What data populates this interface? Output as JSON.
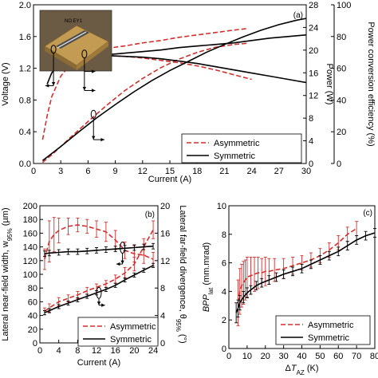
{
  "chart_data": [
    {
      "type": "line",
      "panel_label": "(a)",
      "xlabel": "Current (A)",
      "ylabel_left": "Voltage (V)",
      "ylabel_right1": "Power (W)",
      "ylabel_right2": "Power conversion efficiency (%)",
      "xlim": [
        0,
        30
      ],
      "ylim_left": [
        0,
        2.0
      ],
      "ylim_right1": [
        0,
        28
      ],
      "ylim_right2": [
        0,
        100
      ],
      "x_ticks": [
        "0",
        "3",
        "6",
        "9",
        "12",
        "15",
        "18",
        "21",
        "24",
        "27",
        "30"
      ],
      "y_left_ticks": [
        "0.0",
        "0.4",
        "0.8",
        "1.2",
        "1.6",
        "2.0"
      ],
      "y_right1_ticks": [
        "0",
        "4",
        "8",
        "12",
        "16",
        "20",
        "24",
        "28"
      ],
      "y_right2_ticks": [
        "0",
        "20",
        "40",
        "60",
        "80",
        "100"
      ],
      "legend": [
        "Asymmetric",
        "Symmetric"
      ],
      "legend_position": "bottom-right",
      "inset_image": true,
      "inset_text": "NO.EY1",
      "series": [
        {
          "name": "Asymmetric",
          "style": "dashed",
          "color": "#d32f2f",
          "quantity": "Voltage",
          "axis": "left",
          "x": [
            1,
            2,
            3,
            4,
            6,
            8,
            10,
            12,
            14,
            16,
            18,
            20,
            22,
            23.5
          ],
          "y": [
            1.33,
            1.36,
            1.38,
            1.39,
            1.42,
            1.45,
            1.48,
            1.52,
            1.55,
            1.59,
            1.62,
            1.65,
            1.68,
            1.7
          ]
        },
        {
          "name": "Asymmetric",
          "style": "dashed",
          "color": "#d32f2f",
          "quantity": "Power",
          "axis": "right1",
          "x": [
            1,
            2,
            3,
            4,
            6,
            8,
            10,
            12,
            14,
            16,
            18,
            20,
            22,
            23.5
          ],
          "y": [
            0.2,
            1.5,
            3.0,
            4.5,
            7.4,
            10.2,
            12.8,
            15.0,
            16.9,
            18.4,
            19.6,
            20.5,
            21.0,
            21.2
          ]
        },
        {
          "name": "Asymmetric",
          "style": "dashed",
          "color": "#d32f2f",
          "quantity": "Efficiency",
          "axis": "right2",
          "x": [
            1,
            1.5,
            2,
            3,
            4,
            5,
            6,
            8,
            10,
            12,
            14,
            16,
            18,
            20,
            22,
            24
          ],
          "y": [
            15,
            30,
            42,
            55,
            62,
            66,
            67.5,
            68,
            67.5,
            66.5,
            65,
            63.5,
            61.5,
            59,
            56,
            53
          ]
        },
        {
          "name": "Symmetric",
          "style": "solid",
          "color": "#000000",
          "quantity": "Voltage",
          "axis": "left",
          "x": [
            1,
            3,
            5,
            8,
            10,
            12,
            14,
            16,
            18,
            20,
            22,
            24,
            26,
            28,
            30
          ],
          "y": [
            1.3,
            1.32,
            1.34,
            1.37,
            1.39,
            1.41,
            1.43,
            1.46,
            1.48,
            1.5,
            1.52,
            1.55,
            1.58,
            1.6,
            1.62
          ]
        },
        {
          "name": "Symmetric",
          "style": "solid",
          "color": "#000000",
          "quantity": "Power",
          "axis": "right1",
          "x": [
            1,
            3,
            5,
            7,
            9,
            11,
            13,
            15,
            17,
            19,
            21,
            23,
            25,
            27,
            29,
            30
          ],
          "y": [
            0.5,
            3.0,
            5.6,
            8.1,
            10.4,
            12.6,
            14.6,
            16.4,
            18.0,
            19.6,
            21.0,
            22.3,
            23.5,
            24.5,
            25.3,
            25.6
          ]
        },
        {
          "name": "Symmetric",
          "style": "solid",
          "color": "#000000",
          "quantity": "Efficiency",
          "axis": "right2",
          "x": [
            1.5,
            2,
            3,
            4,
            6,
            8,
            10,
            12,
            14,
            16,
            18,
            20,
            22,
            24,
            26,
            28,
            30
          ],
          "y": [
            50,
            57,
            64,
            67,
            68,
            68,
            67.5,
            67,
            66,
            64.5,
            63,
            61,
            59,
            57,
            55,
            53,
            51
          ]
        }
      ]
    },
    {
      "type": "line",
      "panel_label": "(b)",
      "xlabel": "Current (A)",
      "ylabel_left": "Lateral near-field width, w95% (µm)",
      "ylabel_right": "Lateral far-field divergence, θ95% (°)",
      "xlim": [
        0,
        25
      ],
      "ylim_left": [
        0,
        200
      ],
      "ylim_right": [
        0,
        20
      ],
      "x_ticks": [
        "0",
        "4",
        "8",
        "12",
        "16",
        "20",
        "24"
      ],
      "y_left_ticks": [
        "0",
        "20",
        "40",
        "60",
        "80",
        "100",
        "120",
        "140",
        "160",
        "180",
        "200"
      ],
      "y_right_ticks": [
        "0",
        "4",
        "8",
        "12",
        "16",
        "20"
      ],
      "legend": [
        "Asymmetric",
        "Symmetric"
      ],
      "legend_position": "bottom-right",
      "series": [
        {
          "name": "Asymmetric",
          "style": "dashed",
          "color": "#d32f2f",
          "quantity": "Near-field width",
          "axis": "left",
          "x": [
            1,
            2,
            3,
            4,
            6,
            8,
            10,
            12,
            14,
            16,
            18,
            20,
            22,
            24
          ],
          "y": [
            122,
            148,
            158,
            164,
            170,
            172,
            170,
            166,
            162,
            150,
            135,
            130,
            128,
            122
          ],
          "err": [
            15,
            30,
            25,
            18,
            12,
            10,
            10,
            12,
            14,
            14,
            12,
            12,
            12,
            10
          ]
        },
        {
          "name": "Asymmetric",
          "style": "dashed",
          "color": "#d32f2f",
          "quantity": "Far-field divergence",
          "axis": "right",
          "x": [
            1,
            2,
            4,
            6,
            8,
            10,
            12,
            14,
            16,
            18,
            20,
            22,
            24
          ],
          "y": [
            4.6,
            5.1,
            6.0,
            6.5,
            7.0,
            7.6,
            8.1,
            8.6,
            9.3,
            10.2,
            11.5,
            14.0,
            16.5
          ],
          "err": [
            0.5,
            0.6,
            0.6,
            0.5,
            0.5,
            0.5,
            0.5,
            0.5,
            0.6,
            0.8,
            1.0,
            1.2,
            1.3
          ]
        },
        {
          "name": "Symmetric",
          "style": "solid",
          "color": "#000000",
          "quantity": "Near-field width",
          "axis": "left",
          "x": [
            1,
            2,
            4,
            6,
            8,
            10,
            12,
            14,
            16,
            18,
            20,
            22,
            24
          ],
          "y": [
            130,
            131,
            132,
            133,
            133,
            134,
            135,
            136,
            137,
            138,
            139,
            140,
            141
          ],
          "err": [
            4,
            4,
            4,
            4,
            4,
            4,
            4,
            4,
            4,
            4,
            4,
            4,
            4
          ]
        },
        {
          "name": "Symmetric",
          "style": "solid",
          "color": "#000000",
          "quantity": "Far-field divergence",
          "axis": "right",
          "x": [
            1,
            2,
            4,
            6,
            8,
            10,
            12,
            14,
            16,
            18,
            20,
            22,
            24
          ],
          "y": [
            4.4,
            4.7,
            5.3,
            5.8,
            6.3,
            6.8,
            7.3,
            7.8,
            8.4,
            9.2,
            9.9,
            10.6,
            11.3
          ],
          "err": [
            0.3,
            0.3,
            0.3,
            0.3,
            0.3,
            0.3,
            0.3,
            0.3,
            0.3,
            0.3,
            0.3,
            0.3,
            0.3
          ]
        }
      ]
    },
    {
      "type": "line",
      "panel_label": "(c)",
      "xlabel": "ΔT_AZ (K)",
      "ylabel": "BPP_lat (mm.mrad)",
      "xlim": [
        0,
        80
      ],
      "ylim": [
        0,
        10
      ],
      "x_ticks": [
        "0",
        "10",
        "20",
        "30",
        "40",
        "50",
        "60",
        "70",
        "80"
      ],
      "y_ticks": [
        "0",
        "2",
        "4",
        "6",
        "8",
        "10"
      ],
      "legend": [
        "Asymmetric",
        "Symmetric"
      ],
      "legend_position": "bottom-right",
      "series": [
        {
          "name": "Asymmetric",
          "style": "dashed",
          "color": "#d32f2f",
          "x": [
            5,
            6,
            7,
            8,
            9,
            10,
            12,
            14,
            16,
            18,
            20,
            22,
            25,
            30,
            35,
            40,
            45,
            50,
            55,
            60,
            65,
            70
          ],
          "y": [
            3.2,
            4.0,
            4.4,
            4.6,
            4.8,
            5.0,
            5.1,
            5.2,
            5.3,
            5.3,
            5.4,
            5.4,
            5.5,
            5.6,
            5.8,
            6.0,
            6.2,
            6.5,
            6.9,
            7.4,
            8.0,
            8.4
          ],
          "err": [
            1.6,
            1.6,
            1.5,
            1.5,
            1.4,
            1.4,
            1.3,
            1.2,
            1.1,
            1.0,
            1.0,
            0.9,
            0.8,
            0.7,
            0.6,
            0.5,
            0.5,
            0.5,
            0.5,
            0.5,
            0.5,
            0.5
          ]
        },
        {
          "name": "Symmetric",
          "style": "solid",
          "color": "#000000",
          "x": [
            4,
            5,
            6,
            8,
            10,
            12,
            15,
            18,
            22,
            26,
            30,
            35,
            40,
            45,
            50,
            55,
            60,
            65,
            70,
            75,
            80
          ],
          "y": [
            2.5,
            2.8,
            3.2,
            3.6,
            3.9,
            4.1,
            4.4,
            4.6,
            4.8,
            5.0,
            5.2,
            5.4,
            5.6,
            5.9,
            6.2,
            6.5,
            6.8,
            7.2,
            7.6,
            7.9,
            8.1
          ],
          "err": [
            0.7,
            0.6,
            0.5,
            0.4,
            0.35,
            0.3,
            0.3,
            0.3,
            0.3,
            0.3,
            0.3,
            0.3,
            0.3,
            0.3,
            0.3,
            0.3,
            0.3,
            0.3,
            0.3,
            0.3,
            0.3
          ]
        }
      ]
    }
  ]
}
